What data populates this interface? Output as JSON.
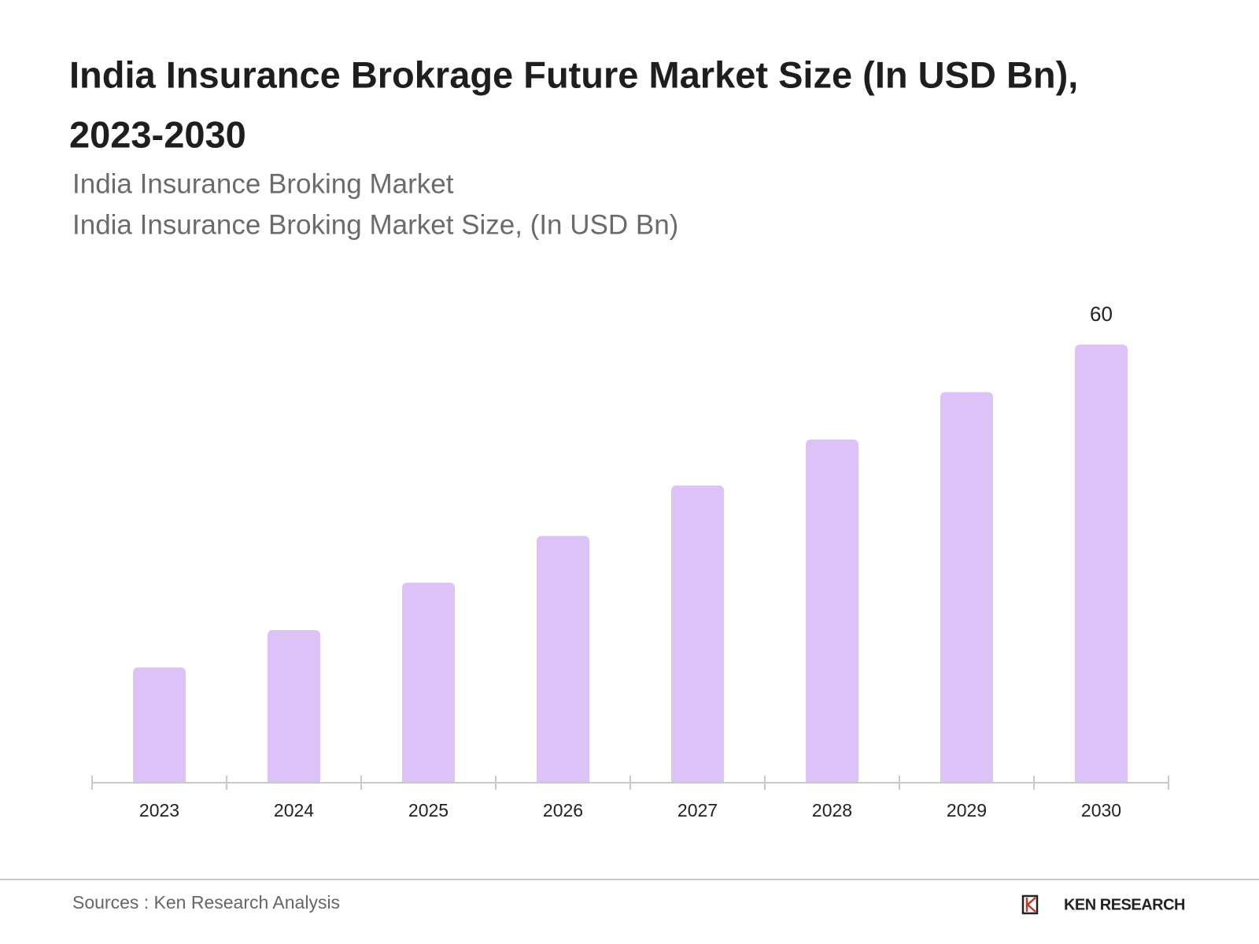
{
  "chart_data": {
    "type": "bar",
    "title": "India Insurance Brokrage Future Market Size (In USD Bn),",
    "title_line2": "2023-2030",
    "subtitle": "India Insurance Broking Market",
    "subtitle2": "India Insurance Broking Market Size, (In USD Bn)",
    "categories": [
      "2023",
      "2024",
      "2025",
      "2026",
      "2027",
      "2028",
      "2029",
      "2030"
    ],
    "values": [
      15.8,
      20.9,
      27.4,
      33.8,
      40.7,
      47.0,
      53.5,
      60
    ],
    "value_labels": [
      null,
      null,
      null,
      null,
      null,
      null,
      null,
      "60"
    ],
    "color": "#dcc2f7",
    "source": "Sources : Ken Research Analysis",
    "logo": "KEN RESEARCH"
  }
}
